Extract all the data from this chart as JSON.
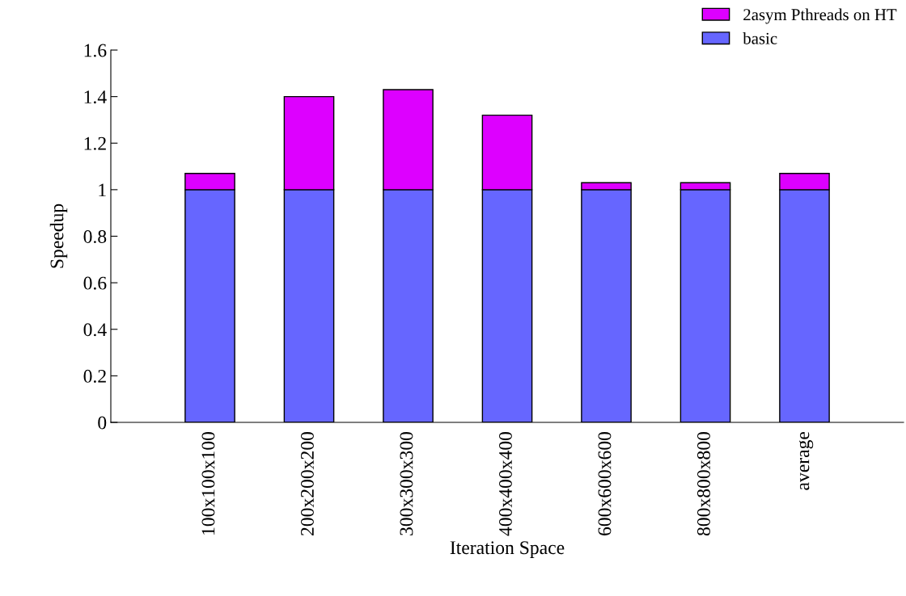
{
  "chart_data": {
    "type": "bar",
    "stacked": true,
    "xlabel": "Iteration Space",
    "ylabel": "Speedup",
    "categories": [
      "100x100x100",
      "200x200x200",
      "300x300x300",
      "400x400x400",
      "600x600x600",
      "800x800x800",
      "average"
    ],
    "series": [
      {
        "name": "basic",
        "color": "#6666ff",
        "values": [
          1,
          1,
          1,
          1,
          1,
          1,
          1
        ]
      },
      {
        "name": "2asym Pthreads on HT",
        "color": "#dd00ff",
        "values": [
          0.07,
          0.4,
          0.43,
          0.32,
          0.03,
          0.03,
          0.07
        ]
      }
    ],
    "ylim": [
      0,
      1.6
    ],
    "yticks": [
      0,
      0.2,
      0.4,
      0.6,
      0.8,
      1,
      1.2,
      1.4,
      1.6
    ],
    "grid": false,
    "legend": "top right"
  }
}
